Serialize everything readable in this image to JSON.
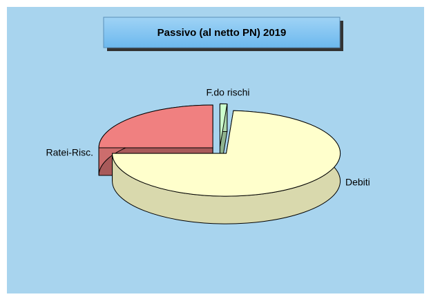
{
  "chart_data": {
    "type": "pie",
    "title": "Passivo (al netto PN) 2019",
    "categories": [
      "F.do rischi",
      "Debiti",
      "Ratei-Risc."
    ],
    "values": [
      1,
      74,
      25
    ],
    "colors": [
      "#ccffcc",
      "#ffffcc",
      "#f08080"
    ]
  }
}
